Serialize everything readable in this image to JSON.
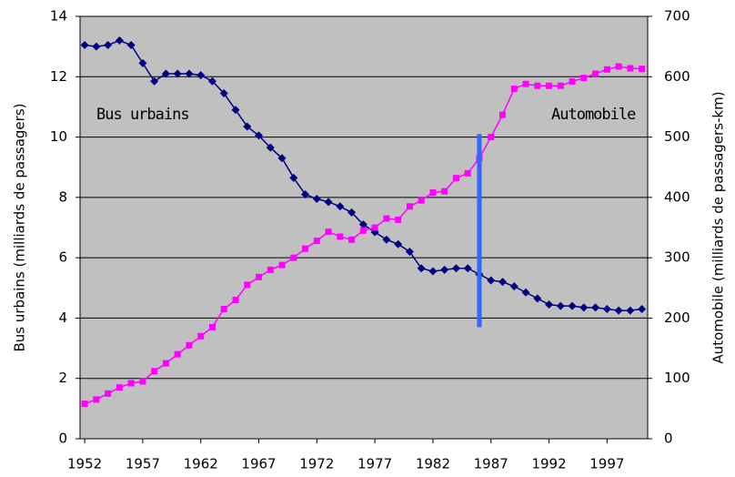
{
  "chart_data": {
    "type": "line",
    "y_label": "Bus urbains (milliards de passagers)",
    "y2_label": "Automobile (milliards de passagers-km)",
    "x": [
      1952,
      1953,
      1954,
      1955,
      1956,
      1957,
      1958,
      1959,
      1960,
      1961,
      1962,
      1963,
      1964,
      1965,
      1966,
      1967,
      1968,
      1969,
      1970,
      1971,
      1972,
      1973,
      1974,
      1975,
      1976,
      1977,
      1978,
      1979,
      1980,
      1981,
      1982,
      1983,
      1984,
      1985,
      1986,
      1987,
      1988,
      1989,
      1990,
      1991,
      1992,
      1993,
      1994,
      1995,
      1996,
      1997,
      1998,
      1999,
      2000
    ],
    "series": [
      {
        "name": "Bus urbains",
        "color": "#000080",
        "marker": "diamond",
        "values": [
          13.05,
          13.0,
          13.05,
          13.2,
          13.05,
          12.45,
          11.85,
          12.1,
          12.1,
          12.1,
          12.05,
          11.85,
          11.45,
          10.9,
          10.35,
          10.05,
          9.65,
          9.3,
          8.65,
          8.1,
          7.95,
          7.85,
          7.7,
          7.5,
          7.1,
          6.85,
          6.6,
          6.45,
          6.2,
          5.65,
          5.55,
          5.6,
          5.65,
          5.65,
          5.45,
          5.25,
          5.2,
          5.05,
          4.85,
          4.65,
          4.45,
          4.4,
          4.4,
          4.35,
          4.35,
          4.3,
          4.25,
          4.25,
          4.3
        ]
      },
      {
        "name": "Automobile",
        "color": "#ff00ff",
        "marker": "square",
        "axis": "y2",
        "values": [
          58,
          65,
          75,
          85,
          92,
          95,
          112,
          125,
          140,
          155,
          170,
          185,
          215,
          230,
          255,
          268,
          280,
          288,
          300,
          315,
          328,
          343,
          335,
          330,
          345,
          350,
          365,
          363,
          385,
          395,
          408,
          410,
          432,
          440,
          465,
          500,
          537,
          580,
          588,
          585,
          585,
          585,
          592,
          598,
          605,
          612,
          617,
          614,
          613
        ]
      }
    ],
    "vertical_line": {
      "x": 1986,
      "y": [
        3.7,
        10.1
      ],
      "color": "#3366ff"
    },
    "xlim": [
      1951.6,
      2000.5
    ],
    "xticks": [
      1952,
      1957,
      1962,
      1967,
      1972,
      1977,
      1982,
      1987,
      1992,
      1997
    ],
    "ylim": [
      0,
      14
    ],
    "yticks": [
      0,
      2,
      4,
      6,
      8,
      10,
      12,
      14
    ],
    "y2lim": [
      0,
      700
    ],
    "y2ticks": [
      0,
      100,
      200,
      300,
      400,
      500,
      600,
      700
    ],
    "grid": true,
    "background": "#c0c0c0"
  }
}
